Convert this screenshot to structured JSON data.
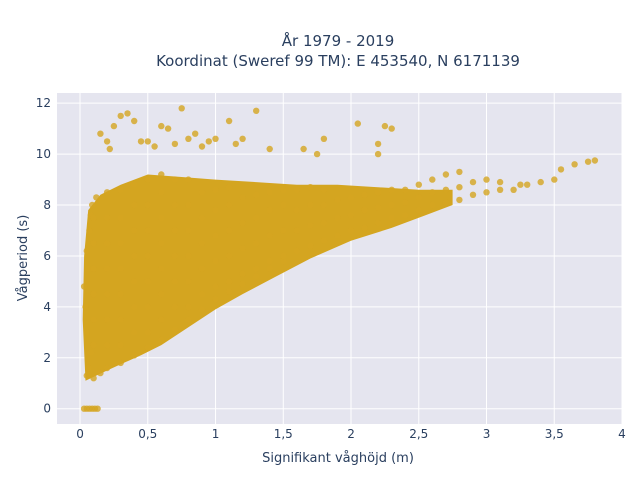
{
  "chart_data": {
    "type": "scatter",
    "title_line1": "År 1979 - 2019",
    "title_line2": "Koordinat (Sweref 99 TM): E 453540, N 6171139",
    "xlabel": "Signifikant våghöjd (m)",
    "ylabel": "Vågperiod (s)",
    "xlim": [
      -0.17,
      4.0
    ],
    "ylim": [
      -0.6,
      12.4
    ],
    "x_ticks": [
      0,
      0.5,
      1,
      1.5,
      2,
      2.5,
      3,
      3.5,
      4
    ],
    "x_tick_labels": [
      "0",
      "0,5",
      "1",
      "1,5",
      "2",
      "2,5",
      "3",
      "3,5",
      "4"
    ],
    "y_ticks": [
      0,
      2,
      4,
      6,
      8,
      10,
      12
    ],
    "y_tick_labels": [
      "0",
      "2",
      "4",
      "6",
      "8",
      "10",
      "12"
    ],
    "grid": true,
    "marker_color": "#d4a520",
    "plot_background": "#e5e5ef",
    "series": [
      {
        "points": [
          [
            0.03,
            0
          ],
          [
            0.05,
            0
          ],
          [
            0.07,
            0
          ],
          [
            0.09,
            0
          ],
          [
            0.11,
            0
          ],
          [
            0.13,
            0
          ],
          [
            0.05,
            1.3
          ],
          [
            0.06,
            1.6
          ],
          [
            0.08,
            2.2
          ],
          [
            0.05,
            3.0
          ],
          [
            0.04,
            4.0
          ],
          [
            0.03,
            4.8
          ],
          [
            0.06,
            5.5
          ],
          [
            0.05,
            6.2
          ],
          [
            0.07,
            7.0
          ],
          [
            0.08,
            7.6
          ],
          [
            0.09,
            8.0
          ],
          [
            0.1,
            1.2
          ],
          [
            0.15,
            1.4
          ],
          [
            0.2,
            1.6
          ],
          [
            0.3,
            1.8
          ],
          [
            0.4,
            2.1
          ],
          [
            0.5,
            2.4
          ],
          [
            0.6,
            2.7
          ],
          [
            0.7,
            3.1
          ],
          [
            0.8,
            3.5
          ],
          [
            0.9,
            3.9
          ],
          [
            1.0,
            4.3
          ],
          [
            1.1,
            4.6
          ],
          [
            1.2,
            4.9
          ],
          [
            1.3,
            5.2
          ],
          [
            1.4,
            5.5
          ],
          [
            1.5,
            5.8
          ],
          [
            0.1,
            2.5
          ],
          [
            0.1,
            3.5
          ],
          [
            0.1,
            4.5
          ],
          [
            0.1,
            5.5
          ],
          [
            0.1,
            6.5
          ],
          [
            0.1,
            7.5
          ],
          [
            0.12,
            8.3
          ],
          [
            0.2,
            2.5
          ],
          [
            0.2,
            3.5
          ],
          [
            0.2,
            4.5
          ],
          [
            0.2,
            5.5
          ],
          [
            0.2,
            6.5
          ],
          [
            0.2,
            7.5
          ],
          [
            0.2,
            8.5
          ],
          [
            0.3,
            2.5
          ],
          [
            0.3,
            3.5
          ],
          [
            0.3,
            4.5
          ],
          [
            0.3,
            5.5
          ],
          [
            0.3,
            6.5
          ],
          [
            0.3,
            7.5
          ],
          [
            0.3,
            8.6
          ],
          [
            0.4,
            3.0
          ],
          [
            0.4,
            4.0
          ],
          [
            0.4,
            5.0
          ],
          [
            0.4,
            6.0
          ],
          [
            0.4,
            7.0
          ],
          [
            0.4,
            8.0
          ],
          [
            0.4,
            8.8
          ],
          [
            0.5,
            3.0
          ],
          [
            0.5,
            4.0
          ],
          [
            0.5,
            5.0
          ],
          [
            0.5,
            6.0
          ],
          [
            0.5,
            7.0
          ],
          [
            0.5,
            8.0
          ],
          [
            0.5,
            9.0
          ],
          [
            0.6,
            3.5
          ],
          [
            0.6,
            4.5
          ],
          [
            0.6,
            5.5
          ],
          [
            0.6,
            6.5
          ],
          [
            0.6,
            7.5
          ],
          [
            0.6,
            8.5
          ],
          [
            0.6,
            9.2
          ],
          [
            0.7,
            4.0
          ],
          [
            0.7,
            5.0
          ],
          [
            0.7,
            6.0
          ],
          [
            0.7,
            7.0
          ],
          [
            0.7,
            8.0
          ],
          [
            0.7,
            9.0
          ],
          [
            0.8,
            4.0
          ],
          [
            0.8,
            5.0
          ],
          [
            0.8,
            6.0
          ],
          [
            0.8,
            7.0
          ],
          [
            0.8,
            8.0
          ],
          [
            0.8,
            9.0
          ],
          [
            0.9,
            4.5
          ],
          [
            0.9,
            5.5
          ],
          [
            0.9,
            6.5
          ],
          [
            0.9,
            7.5
          ],
          [
            0.9,
            8.5
          ],
          [
            1.0,
            4.8
          ],
          [
            1.0,
            5.8
          ],
          [
            1.0,
            6.8
          ],
          [
            1.0,
            7.8
          ],
          [
            1.0,
            8.6
          ],
          [
            1.1,
            5.0
          ],
          [
            1.1,
            6.0
          ],
          [
            1.1,
            7.0
          ],
          [
            1.1,
            8.0
          ],
          [
            1.1,
            8.7
          ],
          [
            1.2,
            5.3
          ],
          [
            1.2,
            6.3
          ],
          [
            1.2,
            7.3
          ],
          [
            1.2,
            8.3
          ],
          [
            1.3,
            5.5
          ],
          [
            1.3,
            6.5
          ],
          [
            1.3,
            7.5
          ],
          [
            1.3,
            8.4
          ],
          [
            1.4,
            5.8
          ],
          [
            1.4,
            6.8
          ],
          [
            1.4,
            7.8
          ],
          [
            1.4,
            8.5
          ],
          [
            1.5,
            6.0
          ],
          [
            1.5,
            7.0
          ],
          [
            1.5,
            8.0
          ],
          [
            1.5,
            8.6
          ],
          [
            1.6,
            6.2
          ],
          [
            1.6,
            7.0
          ],
          [
            1.6,
            7.8
          ],
          [
            1.6,
            8.6
          ],
          [
            1.7,
            6.4
          ],
          [
            1.7,
            7.2
          ],
          [
            1.7,
            8.0
          ],
          [
            1.7,
            8.7
          ],
          [
            1.8,
            6.6
          ],
          [
            1.8,
            7.3
          ],
          [
            1.8,
            8.0
          ],
          [
            1.8,
            8.6
          ],
          [
            1.9,
            6.8
          ],
          [
            1.9,
            7.5
          ],
          [
            1.9,
            8.2
          ],
          [
            2.0,
            7.0
          ],
          [
            2.0,
            7.6
          ],
          [
            2.0,
            8.3
          ],
          [
            2.1,
            7.1
          ],
          [
            2.1,
            7.8
          ],
          [
            2.1,
            8.4
          ],
          [
            2.2,
            7.3
          ],
          [
            2.2,
            7.9
          ],
          [
            2.2,
            8.5
          ],
          [
            2.3,
            7.5
          ],
          [
            2.3,
            8.0
          ],
          [
            2.3,
            8.6
          ],
          [
            2.4,
            7.6
          ],
          [
            2.4,
            8.1
          ],
          [
            2.4,
            8.6
          ],
          [
            2.5,
            7.8
          ],
          [
            2.5,
            8.3
          ],
          [
            2.5,
            8.8
          ],
          [
            2.6,
            8.0
          ],
          [
            2.6,
            8.5
          ],
          [
            2.6,
            9.0
          ],
          [
            2.7,
            8.1
          ],
          [
            2.7,
            8.6
          ],
          [
            2.7,
            9.2
          ],
          [
            2.8,
            8.2
          ],
          [
            2.8,
            8.7
          ],
          [
            2.8,
            9.3
          ],
          [
            2.9,
            8.4
          ],
          [
            2.9,
            8.9
          ],
          [
            3.0,
            8.5
          ],
          [
            3.0,
            9.0
          ],
          [
            3.1,
            8.6
          ],
          [
            3.1,
            8.9
          ],
          [
            3.2,
            8.6
          ],
          [
            3.25,
            8.8
          ],
          [
            3.3,
            8.8
          ],
          [
            3.4,
            8.9
          ],
          [
            3.5,
            9.0
          ],
          [
            3.55,
            9.4
          ],
          [
            3.65,
            9.6
          ],
          [
            3.75,
            9.7
          ],
          [
            3.8,
            9.75
          ],
          [
            0.2,
            10.5
          ],
          [
            0.25,
            11.1
          ],
          [
            0.3,
            11.5
          ],
          [
            0.35,
            11.6
          ],
          [
            0.4,
            11.3
          ],
          [
            0.45,
            10.5
          ],
          [
            0.55,
            10.3
          ],
          [
            0.6,
            11.1
          ],
          [
            0.65,
            11.0
          ],
          [
            0.7,
            10.4
          ],
          [
            0.8,
            10.6
          ],
          [
            0.85,
            10.8
          ],
          [
            0.9,
            10.3
          ],
          [
            1.0,
            10.6
          ],
          [
            1.1,
            11.3
          ],
          [
            1.2,
            10.6
          ],
          [
            1.3,
            11.7
          ],
          [
            0.15,
            10.8
          ],
          [
            0.22,
            10.2
          ],
          [
            0.5,
            10.5
          ],
          [
            0.75,
            11.8
          ],
          [
            0.95,
            10.5
          ],
          [
            1.15,
            10.4
          ],
          [
            1.4,
            10.2
          ],
          [
            1.8,
            10.6
          ],
          [
            2.05,
            11.2
          ],
          [
            2.2,
            10.4
          ],
          [
            2.25,
            11.1
          ],
          [
            2.3,
            11.0
          ],
          [
            2.2,
            10.0
          ],
          [
            1.65,
            10.2
          ],
          [
            1.75,
            10.0
          ]
        ]
      }
    ]
  }
}
